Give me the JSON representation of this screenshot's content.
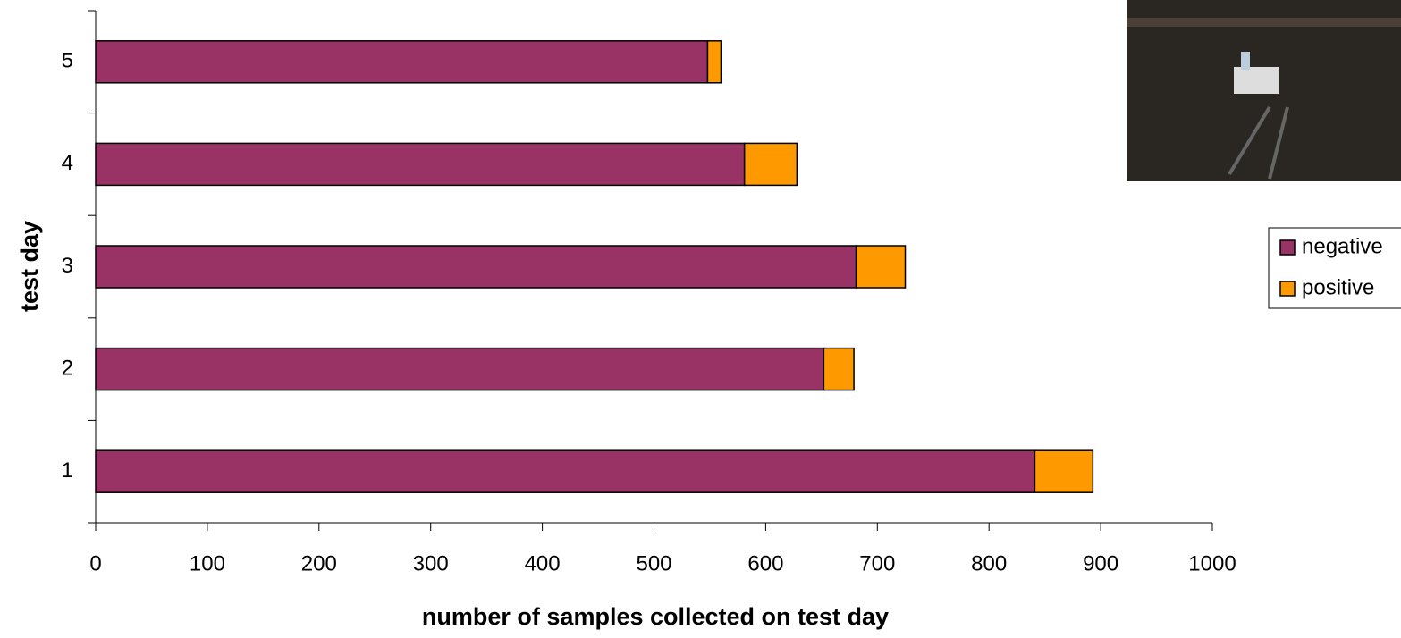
{
  "chart_data": {
    "type": "stacked-bar-horizontal",
    "x_label": "number of samples collected on test day",
    "y_label": "test day",
    "categories": [
      "1",
      "2",
      "3",
      "4",
      "5"
    ],
    "series": [
      {
        "name": "negative",
        "color": "#993366",
        "values": [
          841,
          652,
          681,
          581,
          548
        ]
      },
      {
        "name": "positive",
        "color": "#ff9900",
        "values": [
          52,
          27,
          44,
          47,
          12
        ]
      }
    ],
    "xlim": [
      0,
      1000
    ],
    "xticks": [
      0,
      100,
      200,
      300,
      400,
      500,
      600,
      700,
      800,
      900,
      1000
    ],
    "legend": "right"
  }
}
